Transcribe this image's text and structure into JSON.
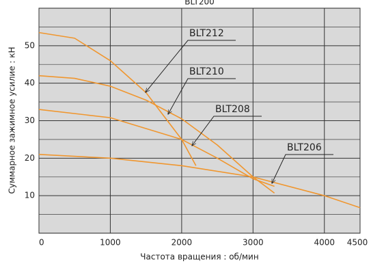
{
  "chart_data": {
    "type": "line",
    "title": "BLT200",
    "xlabel": "Частота вращения : об/мин",
    "ylabel": "Суммарное зажимное усилие : кН",
    "xlim": [
      0,
      4500
    ],
    "xticks": [
      0,
      1000,
      2000,
      3000,
      4000,
      4500
    ],
    "ylim": [
      0,
      60
    ],
    "yticks": [
      10,
      20,
      30,
      40,
      50
    ],
    "yminor": [
      5,
      15,
      25,
      35,
      45,
      55
    ],
    "grid": true,
    "color": "#f0962e",
    "series": [
      {
        "name": "BLT212",
        "x": [
          0,
          500,
          1000,
          1500,
          2000,
          2200
        ],
        "values": [
          53.5,
          52,
          46,
          37.5,
          25,
          18
        ]
      },
      {
        "name": "BLT210",
        "x": [
          0,
          500,
          1000,
          1500,
          2000,
          2500,
          3000,
          3300
        ],
        "values": [
          42,
          41.3,
          39.2,
          35.5,
          30.5,
          23.5,
          15,
          10.7
        ]
      },
      {
        "name": "BLT208",
        "x": [
          0,
          1000,
          2000,
          2500,
          3000,
          3300
        ],
        "values": [
          33,
          30.8,
          25,
          20,
          14.5,
          12.5
        ]
      },
      {
        "name": "BLT206",
        "x": [
          0,
          1000,
          2000,
          3000,
          4000,
          4500
        ],
        "values": [
          21,
          20,
          18,
          15,
          10,
          6.8
        ]
      }
    ]
  }
}
